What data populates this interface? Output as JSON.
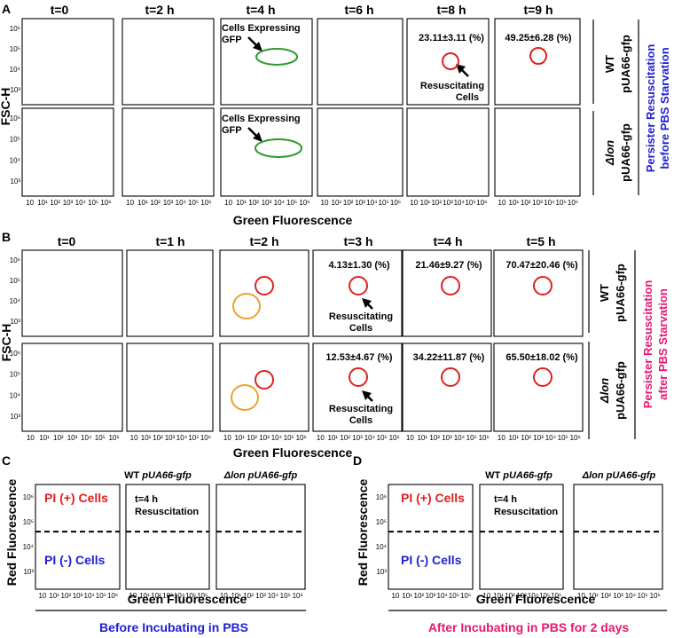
{
  "figure": {
    "panel_A": {
      "letter": "A",
      "timepoints": [
        "t=0",
        "t=2 h",
        "t=4 h",
        "t=6 h",
        "t=8 h",
        "t=9 h"
      ],
      "row_labels": [
        {
          "strain": "WT",
          "plasmid": "pUA66-gfp"
        },
        {
          "strain": "Δlon",
          "plasmid": "pUA66-gfp"
        }
      ],
      "side_title": [
        "Persister Resuscitation",
        "before PBS Starvation"
      ],
      "side_color": "#1f1fd6",
      "ylabel": "FSC-H",
      "xlabel": "Green Fluorescence",
      "annotations": {
        "cells_expressing_gfp": [
          "Cells Expressing",
          "GFP"
        ],
        "resuscitating_cells": [
          "Resuscitating",
          "Cells"
        ],
        "pct_t8": "23.11±3.11 (%)",
        "pct_t9": "49.25±6.28 (%)"
      }
    },
    "panel_B": {
      "letter": "B",
      "timepoints": [
        "t=0",
        "t=1 h",
        "t=2 h",
        "t=3 h",
        "t=4 h",
        "t=5 h"
      ],
      "row_labels": [
        {
          "strain": "WT",
          "plasmid": "pUA66-gfp"
        },
        {
          "strain": "Δlon",
          "plasmid": "pUA66-gfp"
        }
      ],
      "side_title": [
        "Persister Resuscitation",
        "after PBS Starvation"
      ],
      "side_color": "#e8176f",
      "ylabel": "FSC-H",
      "xlabel": "Green Fluorescence",
      "annotations": {
        "resuscitating_cells": [
          "Resuscitating",
          "Cells"
        ],
        "wt_pcts": [
          "4.13±1.30 (%)",
          "21.46±9.27 (%)",
          "70.47±20.46 (%)"
        ],
        "lon_pcts": [
          "12.53±4.67 (%)",
          "34.22±11.87 (%)",
          "65.50±18.02 (%)"
        ]
      }
    },
    "panel_C": {
      "letter": "C",
      "col_titles": [
        {
          "strain": "WT",
          "plasmid": "pUA66-gfp"
        },
        {
          "strain": "Δlon",
          "plasmid": "pUA66-gfp"
        }
      ],
      "pi_pos": "PI (+) Cells",
      "pi_neg": "PI (-) Cells",
      "resus_text": [
        "t=4 h",
        "Resuscitation"
      ],
      "ylabel": "Red Fluorescence",
      "xlabel": "Green Fluorescence",
      "caption": "Before Incubating in PBS",
      "caption_color": "#1f1fd6"
    },
    "panel_D": {
      "letter": "D",
      "col_titles": [
        {
          "strain": "WT",
          "plasmid": "pUA66-gfp"
        },
        {
          "strain": "Δlon",
          "plasmid": "pUA66-gfp"
        }
      ],
      "pi_pos": "PI (+) Cells",
      "pi_neg": "PI (-) Cells",
      "resus_text": [
        "t=4 h",
        "Resuscitation"
      ],
      "ylabel": "Red Fluorescence",
      "xlabel": "Green Fluorescence",
      "caption": "After Incubating in PBS for 2 days",
      "caption_color": "#e8176f"
    },
    "y_ticks": [
      "10³",
      "10⁴",
      "10⁵",
      "10⁶"
    ],
    "x_ticks": [
      "10",
      "10¹",
      "10²",
      "10³",
      "10⁴",
      "10⁵",
      "10⁶"
    ],
    "colors": {
      "pi_pos": "#e02020",
      "pi_neg": "#1f1fd6",
      "gate_green": "#2e9a2e",
      "gate_red": "#e02020",
      "gate_orange": "#f0a030"
    }
  }
}
